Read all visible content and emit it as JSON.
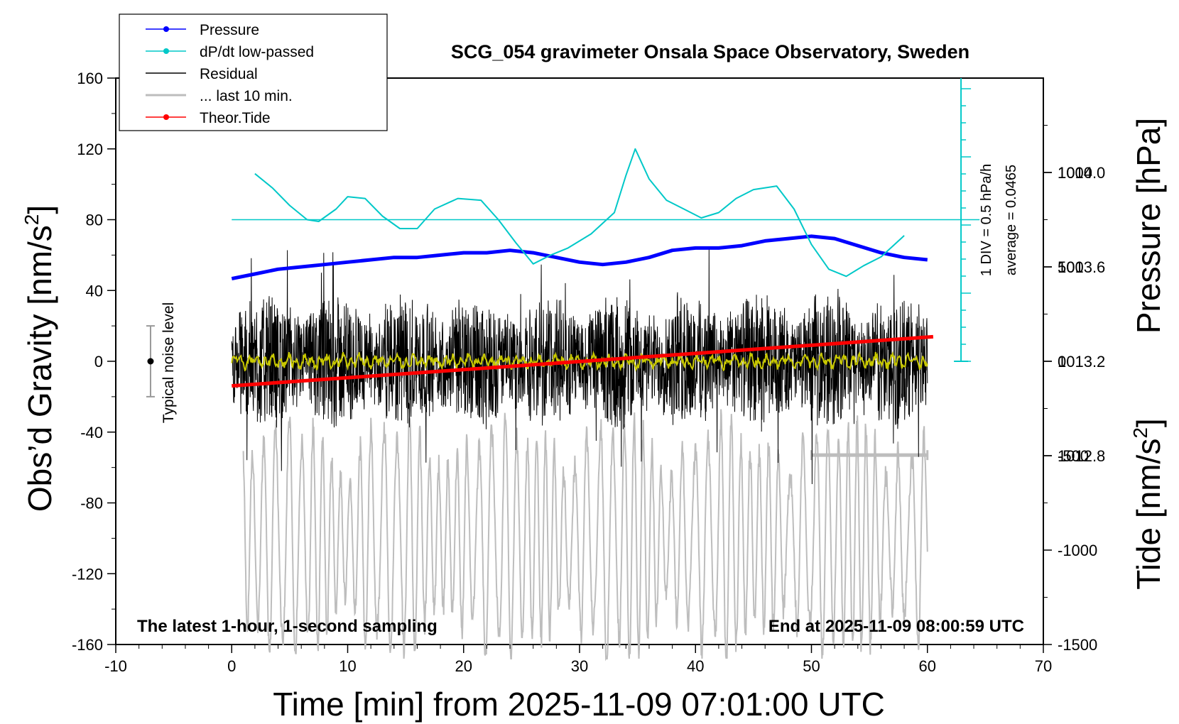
{
  "chart_data": {
    "type": "line",
    "title": "SCG_054 gravimeter Onsala Space Observatory, Sweden",
    "xlabel": "Time [min] from 2025-11-09 07:01:00 UTC",
    "ylabel_left": "Obs’d Gravity [nm/s",
    "ylabel_left_sup": "2",
    "ylabel_left_end": "]",
    "ylabel_right_pressure": "Pressure [hPa]",
    "ylabel_right_tide": "Tide [nm/s",
    "ylabel_right_tide_sup": "2",
    "ylabel_right_tide_end": "]",
    "xlim": [
      -10,
      70
    ],
    "ylim_left": [
      -160,
      160
    ],
    "ylim_pressure": [
      1012.0,
      1014.4
    ],
    "ylim_tide": [
      -1500,
      1500
    ],
    "x_ticks": [
      "-10",
      "0",
      "10",
      "20",
      "30",
      "40",
      "50",
      "60",
      "70"
    ],
    "y_ticks_left": [
      "160",
      "120",
      "80",
      "40",
      "0",
      "-40",
      "-80",
      "-120",
      "-160"
    ],
    "y_ticks_pressure": [
      "1014.0",
      "1013.6",
      "1013.2",
      "1012.8"
    ],
    "y_ticks_tide": [
      "1000",
      "500",
      "0",
      "-500",
      "-1000",
      "-1500"
    ],
    "legend_placement": "top-left",
    "legend": [
      {
        "label": "Pressure",
        "color": "#0000ff",
        "marker": true
      },
      {
        "label": "dP/dt low-passed",
        "color": "#00c8c8",
        "marker": true
      },
      {
        "label": "Residual",
        "color": "#000000",
        "marker": false
      },
      {
        "label": "... last 10 min.",
        "color": "#bdbdbd",
        "marker": false
      },
      {
        "label": "Theor.Tide",
        "color": "#ff0000",
        "marker": true
      }
    ],
    "annotations": {
      "bottom_left": "The latest 1-hour, 1-second sampling",
      "bottom_right": "End at 2025-11-09 08:00:59 UTC",
      "noise": "Typical noise level",
      "dpdt_scale": "1 DIV = 0.5 hPa/h",
      "dpdt_average": "average = 0.0465"
    },
    "noise_bar": {
      "x": -7,
      "y": 0,
      "half_range": 20
    },
    "series": [
      {
        "name": "Pressure",
        "axis": "pressure",
        "color": "#0000ff",
        "x": [
          0,
          2,
          4,
          6,
          8,
          10,
          12,
          14,
          16,
          18,
          20,
          22,
          24,
          26,
          28,
          30,
          32,
          34,
          36,
          38,
          40,
          42,
          44,
          46,
          48,
          50,
          52,
          54,
          56,
          58,
          60
        ],
        "y": [
          1013.55,
          1013.57,
          1013.59,
          1013.6,
          1013.61,
          1013.62,
          1013.63,
          1013.64,
          1013.64,
          1013.65,
          1013.66,
          1013.66,
          1013.67,
          1013.66,
          1013.64,
          1013.62,
          1013.61,
          1013.62,
          1013.64,
          1013.67,
          1013.68,
          1013.68,
          1013.69,
          1013.71,
          1013.72,
          1013.73,
          1013.72,
          1013.69,
          1013.66,
          1013.64,
          1013.63
        ]
      },
      {
        "name": "dP/dt low-passed",
        "axis": "left",
        "color": "#00c8c8",
        "x": [
          2,
          3.5,
          5,
          6.5,
          7.5,
          9,
          10,
          11.5,
          13,
          14.5,
          16,
          17.5,
          19.5,
          21.5,
          23,
          24.5,
          26,
          27.5,
          29,
          31,
          33,
          34,
          34.8,
          36,
          37.5,
          39,
          40.5,
          42,
          43.5,
          45,
          47,
          48.5,
          50,
          51.5,
          53,
          54.5,
          56,
          58
        ],
        "y": [
          106,
          98,
          88,
          80,
          79,
          86,
          93,
          92,
          82,
          75,
          75,
          86,
          92,
          91,
          80,
          67,
          55,
          60,
          64,
          72,
          84,
          105,
          120,
          103,
          91,
          86,
          81,
          84,
          92,
          97,
          99,
          86,
          66,
          52,
          48,
          54,
          59,
          71
        ]
      },
      {
        "name": "Theor.Tide",
        "axis": "tide",
        "color": "#ff0000",
        "x": [
          0,
          60.5
        ],
        "y": [
          -130,
          130
        ]
      }
    ],
    "residual": {
      "x_range": [
        0,
        60
      ],
      "typical_amplitude": 30
    },
    "smoothed_residual": {
      "color": "#c8c800",
      "x_range": [
        0,
        60
      ]
    },
    "last_10_min": {
      "x_range": [
        1,
        60
      ],
      "offset": -100,
      "bar_x": [
        50,
        60
      ],
      "bar_y": -53
    }
  }
}
